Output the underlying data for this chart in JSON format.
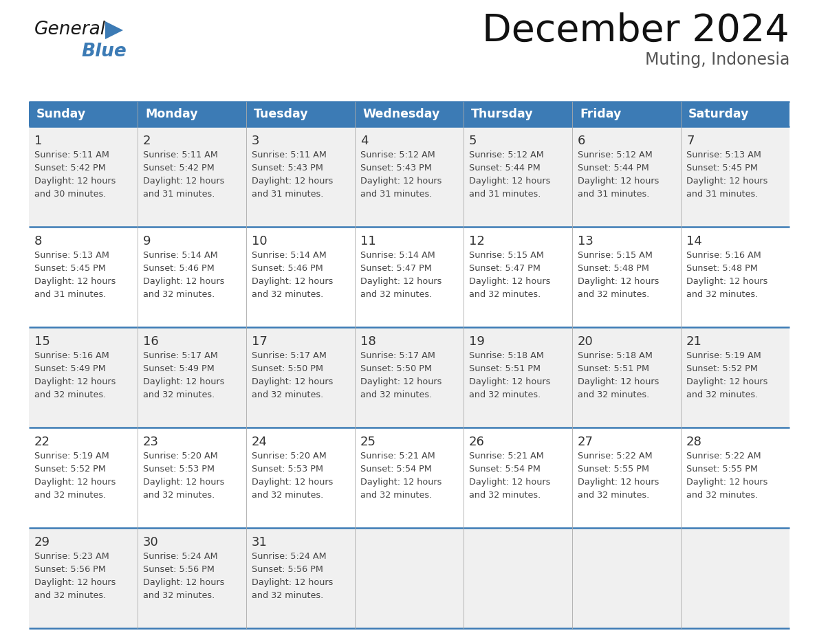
{
  "title": "December 2024",
  "subtitle": "Muting, Indonesia",
  "header_color": "#3C7BB5",
  "header_text_color": "#FFFFFF",
  "cell_bg_even": "#F0F0F0",
  "cell_bg_odd": "#FFFFFF",
  "text_color": "#333333",
  "info_text_color": "#444444",
  "line_color": "#3C7BB5",
  "thin_line_color": "#BBBBBB",
  "days_of_week": [
    "Sunday",
    "Monday",
    "Tuesday",
    "Wednesday",
    "Thursday",
    "Friday",
    "Saturday"
  ],
  "calendar_data": [
    [
      {
        "day": 1,
        "sunrise": "5:11 AM",
        "sunset": "5:42 PM",
        "daylight_hours": 12,
        "daylight_minutes": 30
      },
      {
        "day": 2,
        "sunrise": "5:11 AM",
        "sunset": "5:42 PM",
        "daylight_hours": 12,
        "daylight_minutes": 31
      },
      {
        "day": 3,
        "sunrise": "5:11 AM",
        "sunset": "5:43 PM",
        "daylight_hours": 12,
        "daylight_minutes": 31
      },
      {
        "day": 4,
        "sunrise": "5:12 AM",
        "sunset": "5:43 PM",
        "daylight_hours": 12,
        "daylight_minutes": 31
      },
      {
        "day": 5,
        "sunrise": "5:12 AM",
        "sunset": "5:44 PM",
        "daylight_hours": 12,
        "daylight_minutes": 31
      },
      {
        "day": 6,
        "sunrise": "5:12 AM",
        "sunset": "5:44 PM",
        "daylight_hours": 12,
        "daylight_minutes": 31
      },
      {
        "day": 7,
        "sunrise": "5:13 AM",
        "sunset": "5:45 PM",
        "daylight_hours": 12,
        "daylight_minutes": 31
      }
    ],
    [
      {
        "day": 8,
        "sunrise": "5:13 AM",
        "sunset": "5:45 PM",
        "daylight_hours": 12,
        "daylight_minutes": 31
      },
      {
        "day": 9,
        "sunrise": "5:14 AM",
        "sunset": "5:46 PM",
        "daylight_hours": 12,
        "daylight_minutes": 32
      },
      {
        "day": 10,
        "sunrise": "5:14 AM",
        "sunset": "5:46 PM",
        "daylight_hours": 12,
        "daylight_minutes": 32
      },
      {
        "day": 11,
        "sunrise": "5:14 AM",
        "sunset": "5:47 PM",
        "daylight_hours": 12,
        "daylight_minutes": 32
      },
      {
        "day": 12,
        "sunrise": "5:15 AM",
        "sunset": "5:47 PM",
        "daylight_hours": 12,
        "daylight_minutes": 32
      },
      {
        "day": 13,
        "sunrise": "5:15 AM",
        "sunset": "5:48 PM",
        "daylight_hours": 12,
        "daylight_minutes": 32
      },
      {
        "day": 14,
        "sunrise": "5:16 AM",
        "sunset": "5:48 PM",
        "daylight_hours": 12,
        "daylight_minutes": 32
      }
    ],
    [
      {
        "day": 15,
        "sunrise": "5:16 AM",
        "sunset": "5:49 PM",
        "daylight_hours": 12,
        "daylight_minutes": 32
      },
      {
        "day": 16,
        "sunrise": "5:17 AM",
        "sunset": "5:49 PM",
        "daylight_hours": 12,
        "daylight_minutes": 32
      },
      {
        "day": 17,
        "sunrise": "5:17 AM",
        "sunset": "5:50 PM",
        "daylight_hours": 12,
        "daylight_minutes": 32
      },
      {
        "day": 18,
        "sunrise": "5:17 AM",
        "sunset": "5:50 PM",
        "daylight_hours": 12,
        "daylight_minutes": 32
      },
      {
        "day": 19,
        "sunrise": "5:18 AM",
        "sunset": "5:51 PM",
        "daylight_hours": 12,
        "daylight_minutes": 32
      },
      {
        "day": 20,
        "sunrise": "5:18 AM",
        "sunset": "5:51 PM",
        "daylight_hours": 12,
        "daylight_minutes": 32
      },
      {
        "day": 21,
        "sunrise": "5:19 AM",
        "sunset": "5:52 PM",
        "daylight_hours": 12,
        "daylight_minutes": 32
      }
    ],
    [
      {
        "day": 22,
        "sunrise": "5:19 AM",
        "sunset": "5:52 PM",
        "daylight_hours": 12,
        "daylight_minutes": 32
      },
      {
        "day": 23,
        "sunrise": "5:20 AM",
        "sunset": "5:53 PM",
        "daylight_hours": 12,
        "daylight_minutes": 32
      },
      {
        "day": 24,
        "sunrise": "5:20 AM",
        "sunset": "5:53 PM",
        "daylight_hours": 12,
        "daylight_minutes": 32
      },
      {
        "day": 25,
        "sunrise": "5:21 AM",
        "sunset": "5:54 PM",
        "daylight_hours": 12,
        "daylight_minutes": 32
      },
      {
        "day": 26,
        "sunrise": "5:21 AM",
        "sunset": "5:54 PM",
        "daylight_hours": 12,
        "daylight_minutes": 32
      },
      {
        "day": 27,
        "sunrise": "5:22 AM",
        "sunset": "5:55 PM",
        "daylight_hours": 12,
        "daylight_minutes": 32
      },
      {
        "day": 28,
        "sunrise": "5:22 AM",
        "sunset": "5:55 PM",
        "daylight_hours": 12,
        "daylight_minutes": 32
      }
    ],
    [
      {
        "day": 29,
        "sunrise": "5:23 AM",
        "sunset": "5:56 PM",
        "daylight_hours": 12,
        "daylight_minutes": 32
      },
      {
        "day": 30,
        "sunrise": "5:24 AM",
        "sunset": "5:56 PM",
        "daylight_hours": 12,
        "daylight_minutes": 32
      },
      {
        "day": 31,
        "sunrise": "5:24 AM",
        "sunset": "5:56 PM",
        "daylight_hours": 12,
        "daylight_minutes": 32
      },
      null,
      null,
      null,
      null
    ]
  ]
}
